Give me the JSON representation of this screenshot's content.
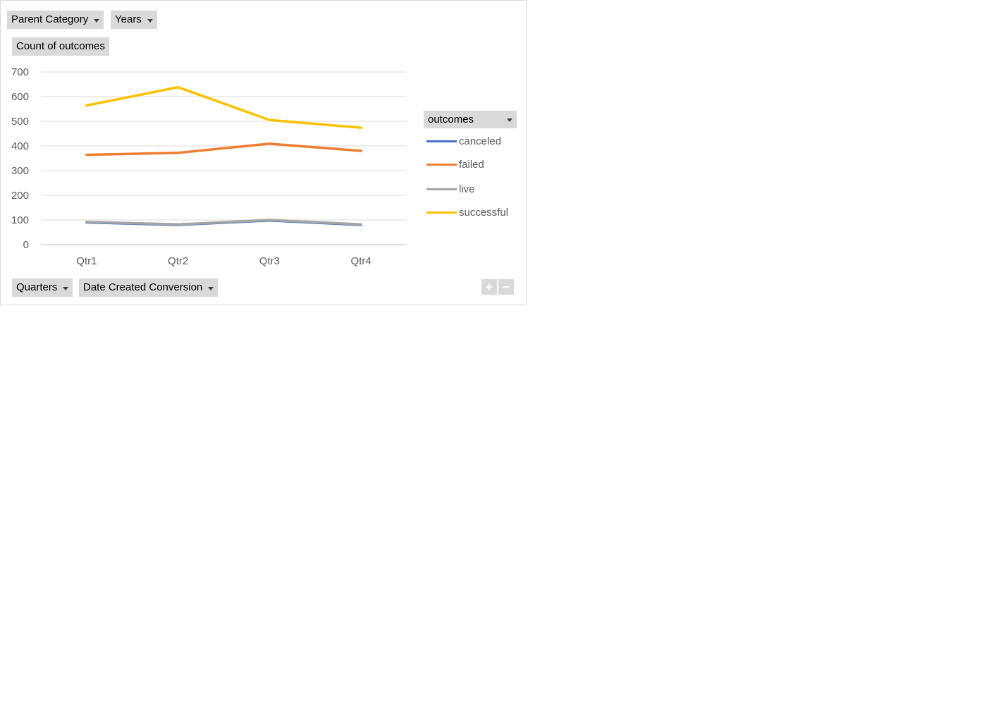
{
  "filters": {
    "parent_category": "Parent Category",
    "years": "Years"
  },
  "value_field": "Count of outcomes",
  "axis_fields": {
    "quarters": "Quarters",
    "date_created": "Date Created Conversion"
  },
  "legend": {
    "title": "outcomes"
  },
  "zoom": {
    "plus": "+",
    "minus": "−"
  },
  "chart_data": {
    "type": "line",
    "categories": [
      "Qtr1",
      "Qtr2",
      "Qtr3",
      "Qtr4"
    ],
    "series": [
      {
        "name": "canceled",
        "color": "#4472c4",
        "values": [
          90,
          80,
          98,
          80
        ]
      },
      {
        "name": "failed",
        "color": "#ed7d31",
        "values": [
          364,
          372,
          409,
          380
        ]
      },
      {
        "name": "live",
        "color": "#a5a5a5",
        "values": [
          92,
          82,
          100,
          82
        ]
      },
      {
        "name": "successful",
        "color": "#ffc000",
        "values": [
          564,
          638,
          505,
          474
        ]
      }
    ],
    "ylim": [
      0,
      700
    ],
    "yticks": [
      0,
      100,
      200,
      300,
      400,
      500,
      600,
      700
    ],
    "grid": true,
    "legend_position": "right",
    "title": "",
    "xlabel": "",
    "ylabel": ""
  }
}
